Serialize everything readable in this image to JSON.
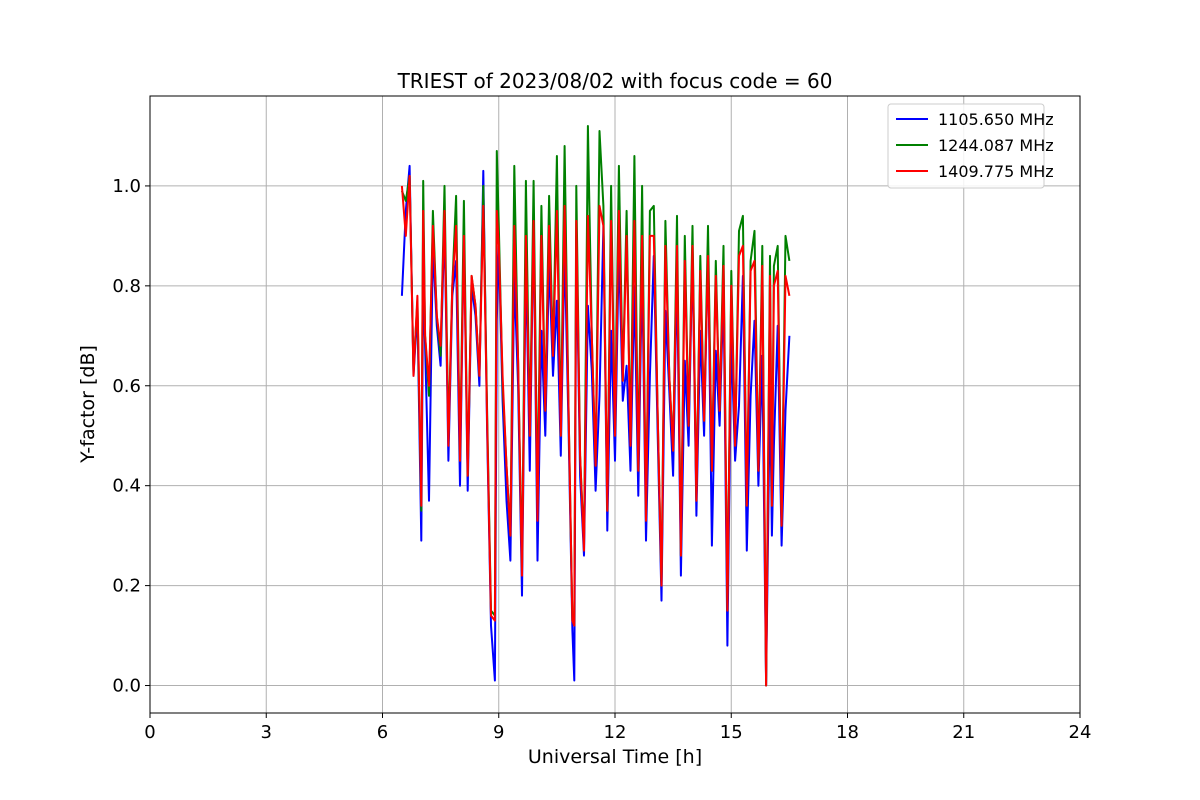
{
  "chart_data": {
    "type": "line",
    "title": "TRIEST of 2023/08/02 with focus code = 60",
    "xlabel": "Universal Time [h]",
    "ylabel": "Y-factor [dB]",
    "xlim": [
      0,
      24
    ],
    "ylim": [
      -0.055,
      1.18
    ],
    "xticks": [
      0,
      3,
      6,
      9,
      12,
      15,
      18,
      21,
      24
    ],
    "yticks": [
      0.0,
      0.2,
      0.4,
      0.6,
      0.8,
      1.0
    ],
    "ytick_labels": [
      "0.0",
      "0.2",
      "0.4",
      "0.6",
      "0.8",
      "1.0"
    ],
    "grid": true,
    "legend_position": "top-right",
    "series": [
      {
        "name": "1105.650 MHz",
        "color": "#0000ff",
        "x": [
          6.5,
          6.6,
          6.7,
          6.8,
          6.9,
          7.0,
          7.05,
          7.1,
          7.2,
          7.3,
          7.4,
          7.5,
          7.6,
          7.7,
          7.8,
          7.9,
          8.0,
          8.1,
          8.2,
          8.3,
          8.4,
          8.5,
          8.6,
          8.7,
          8.8,
          8.9,
          8.95,
          9.0,
          9.1,
          9.2,
          9.3,
          9.4,
          9.5,
          9.6,
          9.7,
          9.8,
          9.9,
          10.0,
          10.1,
          10.2,
          10.3,
          10.4,
          10.5,
          10.6,
          10.7,
          10.8,
          10.9,
          10.95,
          11.0,
          11.1,
          11.2,
          11.3,
          11.4,
          11.5,
          11.6,
          11.7,
          11.8,
          11.9,
          12.0,
          12.1,
          12.2,
          12.3,
          12.4,
          12.5,
          12.6,
          12.7,
          12.8,
          12.9,
          13.0,
          13.1,
          13.2,
          13.3,
          13.4,
          13.5,
          13.6,
          13.7,
          13.8,
          13.9,
          14.0,
          14.1,
          14.2,
          14.3,
          14.4,
          14.5,
          14.6,
          14.7,
          14.8,
          14.9,
          15.0,
          15.1,
          15.2,
          15.3,
          15.4,
          15.5,
          15.6,
          15.7,
          15.8,
          15.9,
          16.0,
          16.05,
          16.1,
          16.2,
          16.3,
          16.4,
          16.5
        ],
        "y": [
          0.78,
          0.95,
          1.04,
          0.62,
          0.75,
          0.29,
          0.82,
          0.68,
          0.37,
          0.88,
          0.72,
          0.64,
          0.93,
          0.45,
          0.78,
          0.85,
          0.4,
          0.91,
          0.39,
          0.8,
          0.74,
          0.6,
          1.03,
          0.51,
          0.12,
          0.01,
          0.73,
          0.88,
          0.57,
          0.37,
          0.25,
          0.82,
          0.6,
          0.18,
          0.86,
          0.43,
          0.94,
          0.25,
          0.71,
          0.5,
          0.85,
          0.62,
          0.77,
          0.46,
          0.88,
          0.52,
          0.11,
          0.01,
          0.9,
          0.42,
          0.26,
          0.76,
          0.63,
          0.39,
          0.58,
          0.92,
          0.31,
          0.71,
          0.45,
          0.88,
          0.57,
          0.64,
          0.43,
          0.8,
          0.38,
          0.84,
          0.29,
          0.62,
          0.86,
          0.51,
          0.17,
          0.75,
          0.59,
          0.42,
          0.83,
          0.22,
          0.65,
          0.48,
          0.87,
          0.34,
          0.71,
          0.5,
          0.88,
          0.28,
          0.67,
          0.52,
          0.79,
          0.08,
          0.7,
          0.45,
          0.56,
          0.82,
          0.27,
          0.58,
          0.73,
          0.4,
          0.66,
          0.0,
          0.6,
          0.3,
          0.48,
          0.72,
          0.28,
          0.55,
          0.7
        ]
      },
      {
        "name": "1244.087 MHz",
        "color": "#008000",
        "x": [
          6.5,
          6.6,
          6.7,
          6.8,
          6.9,
          7.0,
          7.05,
          7.1,
          7.2,
          7.3,
          7.4,
          7.5,
          7.6,
          7.7,
          7.8,
          7.9,
          8.0,
          8.1,
          8.2,
          8.3,
          8.4,
          8.5,
          8.6,
          8.7,
          8.8,
          8.9,
          8.95,
          9.0,
          9.1,
          9.2,
          9.3,
          9.4,
          9.5,
          9.6,
          9.7,
          9.8,
          9.9,
          10.0,
          10.1,
          10.2,
          10.3,
          10.4,
          10.5,
          10.6,
          10.7,
          10.8,
          10.9,
          10.95,
          11.0,
          11.1,
          11.2,
          11.3,
          11.4,
          11.5,
          11.6,
          11.7,
          11.8,
          11.9,
          12.0,
          12.1,
          12.2,
          12.3,
          12.4,
          12.5,
          12.6,
          12.7,
          12.8,
          12.9,
          13.0,
          13.1,
          13.2,
          13.3,
          13.4,
          13.5,
          13.6,
          13.7,
          13.8,
          13.9,
          14.0,
          14.1,
          14.2,
          14.3,
          14.4,
          14.5,
          14.6,
          14.7,
          14.8,
          14.9,
          15.0,
          15.1,
          15.2,
          15.3,
          15.4,
          15.5,
          15.6,
          15.7,
          15.8,
          15.9,
          16.0,
          16.05,
          16.1,
          16.2,
          16.3,
          16.4,
          16.5
        ],
        "y": [
          0.99,
          0.97,
          1.02,
          0.63,
          0.77,
          0.35,
          1.01,
          0.7,
          0.58,
          0.95,
          0.74,
          0.66,
          1.0,
          0.5,
          0.8,
          0.98,
          0.45,
          0.97,
          0.42,
          0.82,
          0.76,
          0.62,
          1.0,
          0.55,
          0.15,
          0.14,
          1.07,
          0.92,
          0.6,
          0.44,
          0.3,
          1.04,
          0.65,
          0.23,
          1.01,
          0.5,
          1.01,
          0.36,
          0.96,
          0.55,
          0.98,
          0.66,
          1.06,
          0.5,
          1.08,
          0.56,
          0.13,
          0.12,
          1.0,
          0.46,
          0.28,
          1.12,
          0.7,
          0.44,
          1.11,
          0.96,
          0.35,
          1.0,
          0.5,
          1.04,
          0.61,
          0.95,
          0.48,
          1.06,
          0.43,
          1.0,
          0.33,
          0.95,
          0.96,
          0.55,
          0.2,
          0.93,
          0.62,
          0.47,
          0.94,
          0.26,
          0.9,
          0.52,
          0.92,
          0.37,
          0.86,
          0.53,
          0.92,
          0.43,
          0.85,
          0.55,
          0.88,
          0.15,
          0.83,
          0.48,
          0.91,
          0.94,
          0.36,
          0.85,
          0.91,
          0.43,
          0.88,
          0.0,
          0.86,
          0.36,
          0.84,
          0.88,
          0.32,
          0.9,
          0.85
        ]
      },
      {
        "name": "1409.775 MHz",
        "color": "#ff0000",
        "x": [
          6.5,
          6.6,
          6.7,
          6.8,
          6.9,
          7.0,
          7.05,
          7.1,
          7.2,
          7.3,
          7.4,
          7.5,
          7.6,
          7.7,
          7.8,
          7.9,
          8.0,
          8.1,
          8.2,
          8.3,
          8.4,
          8.5,
          8.6,
          8.7,
          8.8,
          8.9,
          8.95,
          9.0,
          9.1,
          9.2,
          9.3,
          9.4,
          9.5,
          9.6,
          9.7,
          9.8,
          9.9,
          10.0,
          10.1,
          10.2,
          10.3,
          10.4,
          10.5,
          10.6,
          10.7,
          10.8,
          10.9,
          10.95,
          11.0,
          11.1,
          11.2,
          11.3,
          11.4,
          11.5,
          11.6,
          11.7,
          11.8,
          11.9,
          12.0,
          12.1,
          12.2,
          12.3,
          12.4,
          12.5,
          12.6,
          12.7,
          12.8,
          12.9,
          13.0,
          13.1,
          13.2,
          13.3,
          13.4,
          13.5,
          13.6,
          13.7,
          13.8,
          13.9,
          14.0,
          14.1,
          14.2,
          14.3,
          14.4,
          14.5,
          14.6,
          14.7,
          14.8,
          14.9,
          15.0,
          15.1,
          15.2,
          15.3,
          15.4,
          15.5,
          15.6,
          15.7,
          15.8,
          15.9,
          16.0,
          16.05,
          16.1,
          16.2,
          16.3,
          16.4,
          16.5
        ],
        "y": [
          1.0,
          0.9,
          1.02,
          0.62,
          0.78,
          0.36,
          0.95,
          0.7,
          0.6,
          0.92,
          0.74,
          0.68,
          0.95,
          0.48,
          0.8,
          0.92,
          0.45,
          0.9,
          0.42,
          0.82,
          0.76,
          0.62,
          0.96,
          0.53,
          0.14,
          0.13,
          0.95,
          0.88,
          0.62,
          0.44,
          0.3,
          0.92,
          0.65,
          0.22,
          0.9,
          0.5,
          0.93,
          0.33,
          0.9,
          0.55,
          0.92,
          0.66,
          0.95,
          0.5,
          0.96,
          0.56,
          0.13,
          0.12,
          0.93,
          0.46,
          0.27,
          0.94,
          0.7,
          0.44,
          0.96,
          0.92,
          0.35,
          0.93,
          0.5,
          0.95,
          0.61,
          0.9,
          0.48,
          0.93,
          0.43,
          0.9,
          0.33,
          0.9,
          0.9,
          0.55,
          0.2,
          0.88,
          0.62,
          0.47,
          0.88,
          0.26,
          0.85,
          0.52,
          0.88,
          0.37,
          0.83,
          0.53,
          0.86,
          0.43,
          0.82,
          0.55,
          0.84,
          0.15,
          0.8,
          0.48,
          0.86,
          0.88,
          0.36,
          0.83,
          0.85,
          0.43,
          0.84,
          0.0,
          0.82,
          0.36,
          0.8,
          0.83,
          0.32,
          0.82,
          0.78
        ]
      }
    ]
  }
}
